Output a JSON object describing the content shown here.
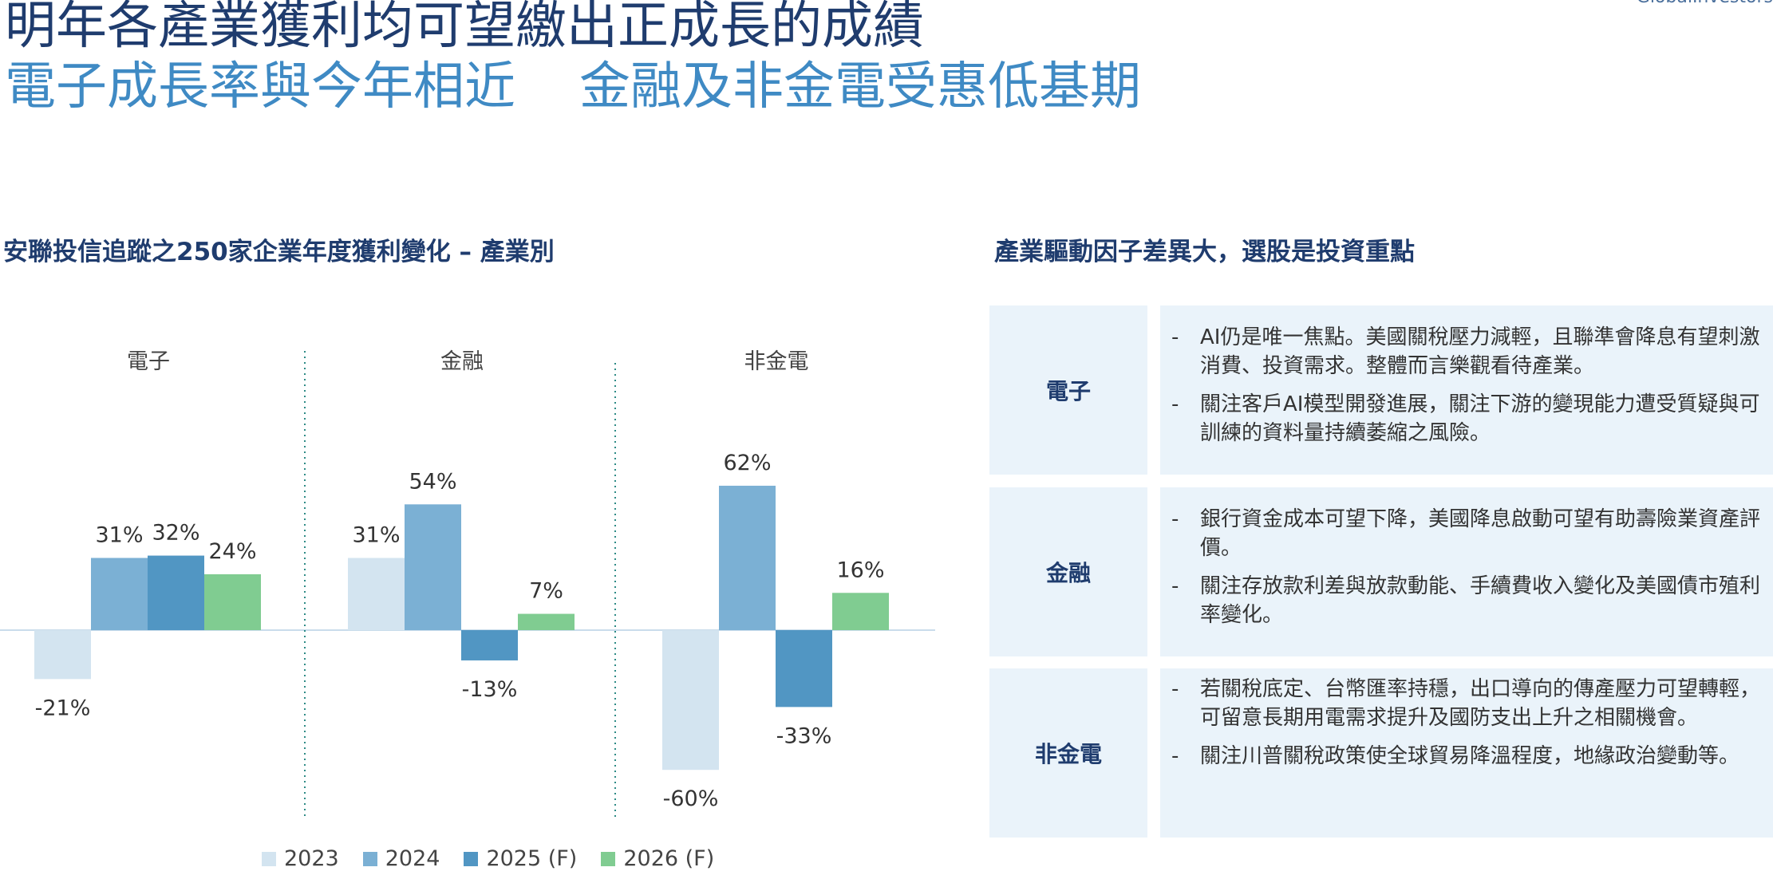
{
  "header": {
    "title_line1": "明年各產業獲利均可望繳出正成長的成績",
    "title_line2_a": "電子成長率與今年相近",
    "title_line2_b": "金融及非金電受惠低基期",
    "corner_text": "GlobalInvestors"
  },
  "left_section": {
    "heading": "安聯投信追蹤之250家企業年度獲利變化 – 產業別"
  },
  "right_section": {
    "heading": "產業驅動因子差異大，選股是投資重點"
  },
  "chart_data": {
    "type": "bar",
    "title": "安聯投信追蹤之250家企業年度獲利變化 – 產業別",
    "categories": [
      "電子",
      "金融",
      "非金電"
    ],
    "series": [
      {
        "name": "2023",
        "values": [
          -21,
          31,
          -60
        ],
        "labels": [
          "-21%",
          "31%",
          "-60%"
        ],
        "color": "#d3e4f0"
      },
      {
        "name": "2024",
        "values": [
          31,
          54,
          62
        ],
        "labels": [
          "31%",
          "54%",
          "62%"
        ],
        "color": "#7bb0d4"
      },
      {
        "name": "2025 (F)",
        "values": [
          32,
          -13,
          -33
        ],
        "labels": [
          "32%",
          "-13%",
          "-33%"
        ],
        "color": "#5196c3"
      },
      {
        "name": "2026 (F)",
        "values": [
          24,
          7,
          16
        ],
        "labels": [
          "24%",
          "7%",
          "16%"
        ],
        "color": "#80cc91"
      }
    ],
    "ylim": [
      -80,
      80
    ],
    "grid": false,
    "legend_position": "bottom"
  },
  "panels": [
    {
      "label": "電子",
      "bullets": [
        {
          "dash": "-",
          "text": "AI仍是唯一焦點。美國關稅壓力減輕，且聯準會降息有望刺激消費、投資需求。整體而言樂觀看待產業。"
        },
        {
          "dash": "-",
          "text": "關注客戶AI模型開發進展，關注下游的變現能力遭受質疑與可訓練的資料量持續萎縮之風險。"
        }
      ]
    },
    {
      "label": "金融",
      "bullets": [
        {
          "dash": "-",
          "text": "銀行資金成本可望下降，美國降息啟動可望有助壽險業資產評價。"
        },
        {
          "dash": "-",
          "text": "關注存放款利差與放款動能、手續費收入變化及美國債市殖利率變化。"
        }
      ]
    },
    {
      "label": "非金電",
      "bullets": [
        {
          "dash": "-",
          "text": "若關稅底定、台幣匯率持穩，出口導向的傳產壓力可望轉輕，可留意長期用電需求提升及國防支出上升之相關機會。"
        },
        {
          "dash": "-",
          "text": "關注川普關稅政策使全球貿易降溫程度，地緣政治變動等。"
        }
      ]
    }
  ]
}
